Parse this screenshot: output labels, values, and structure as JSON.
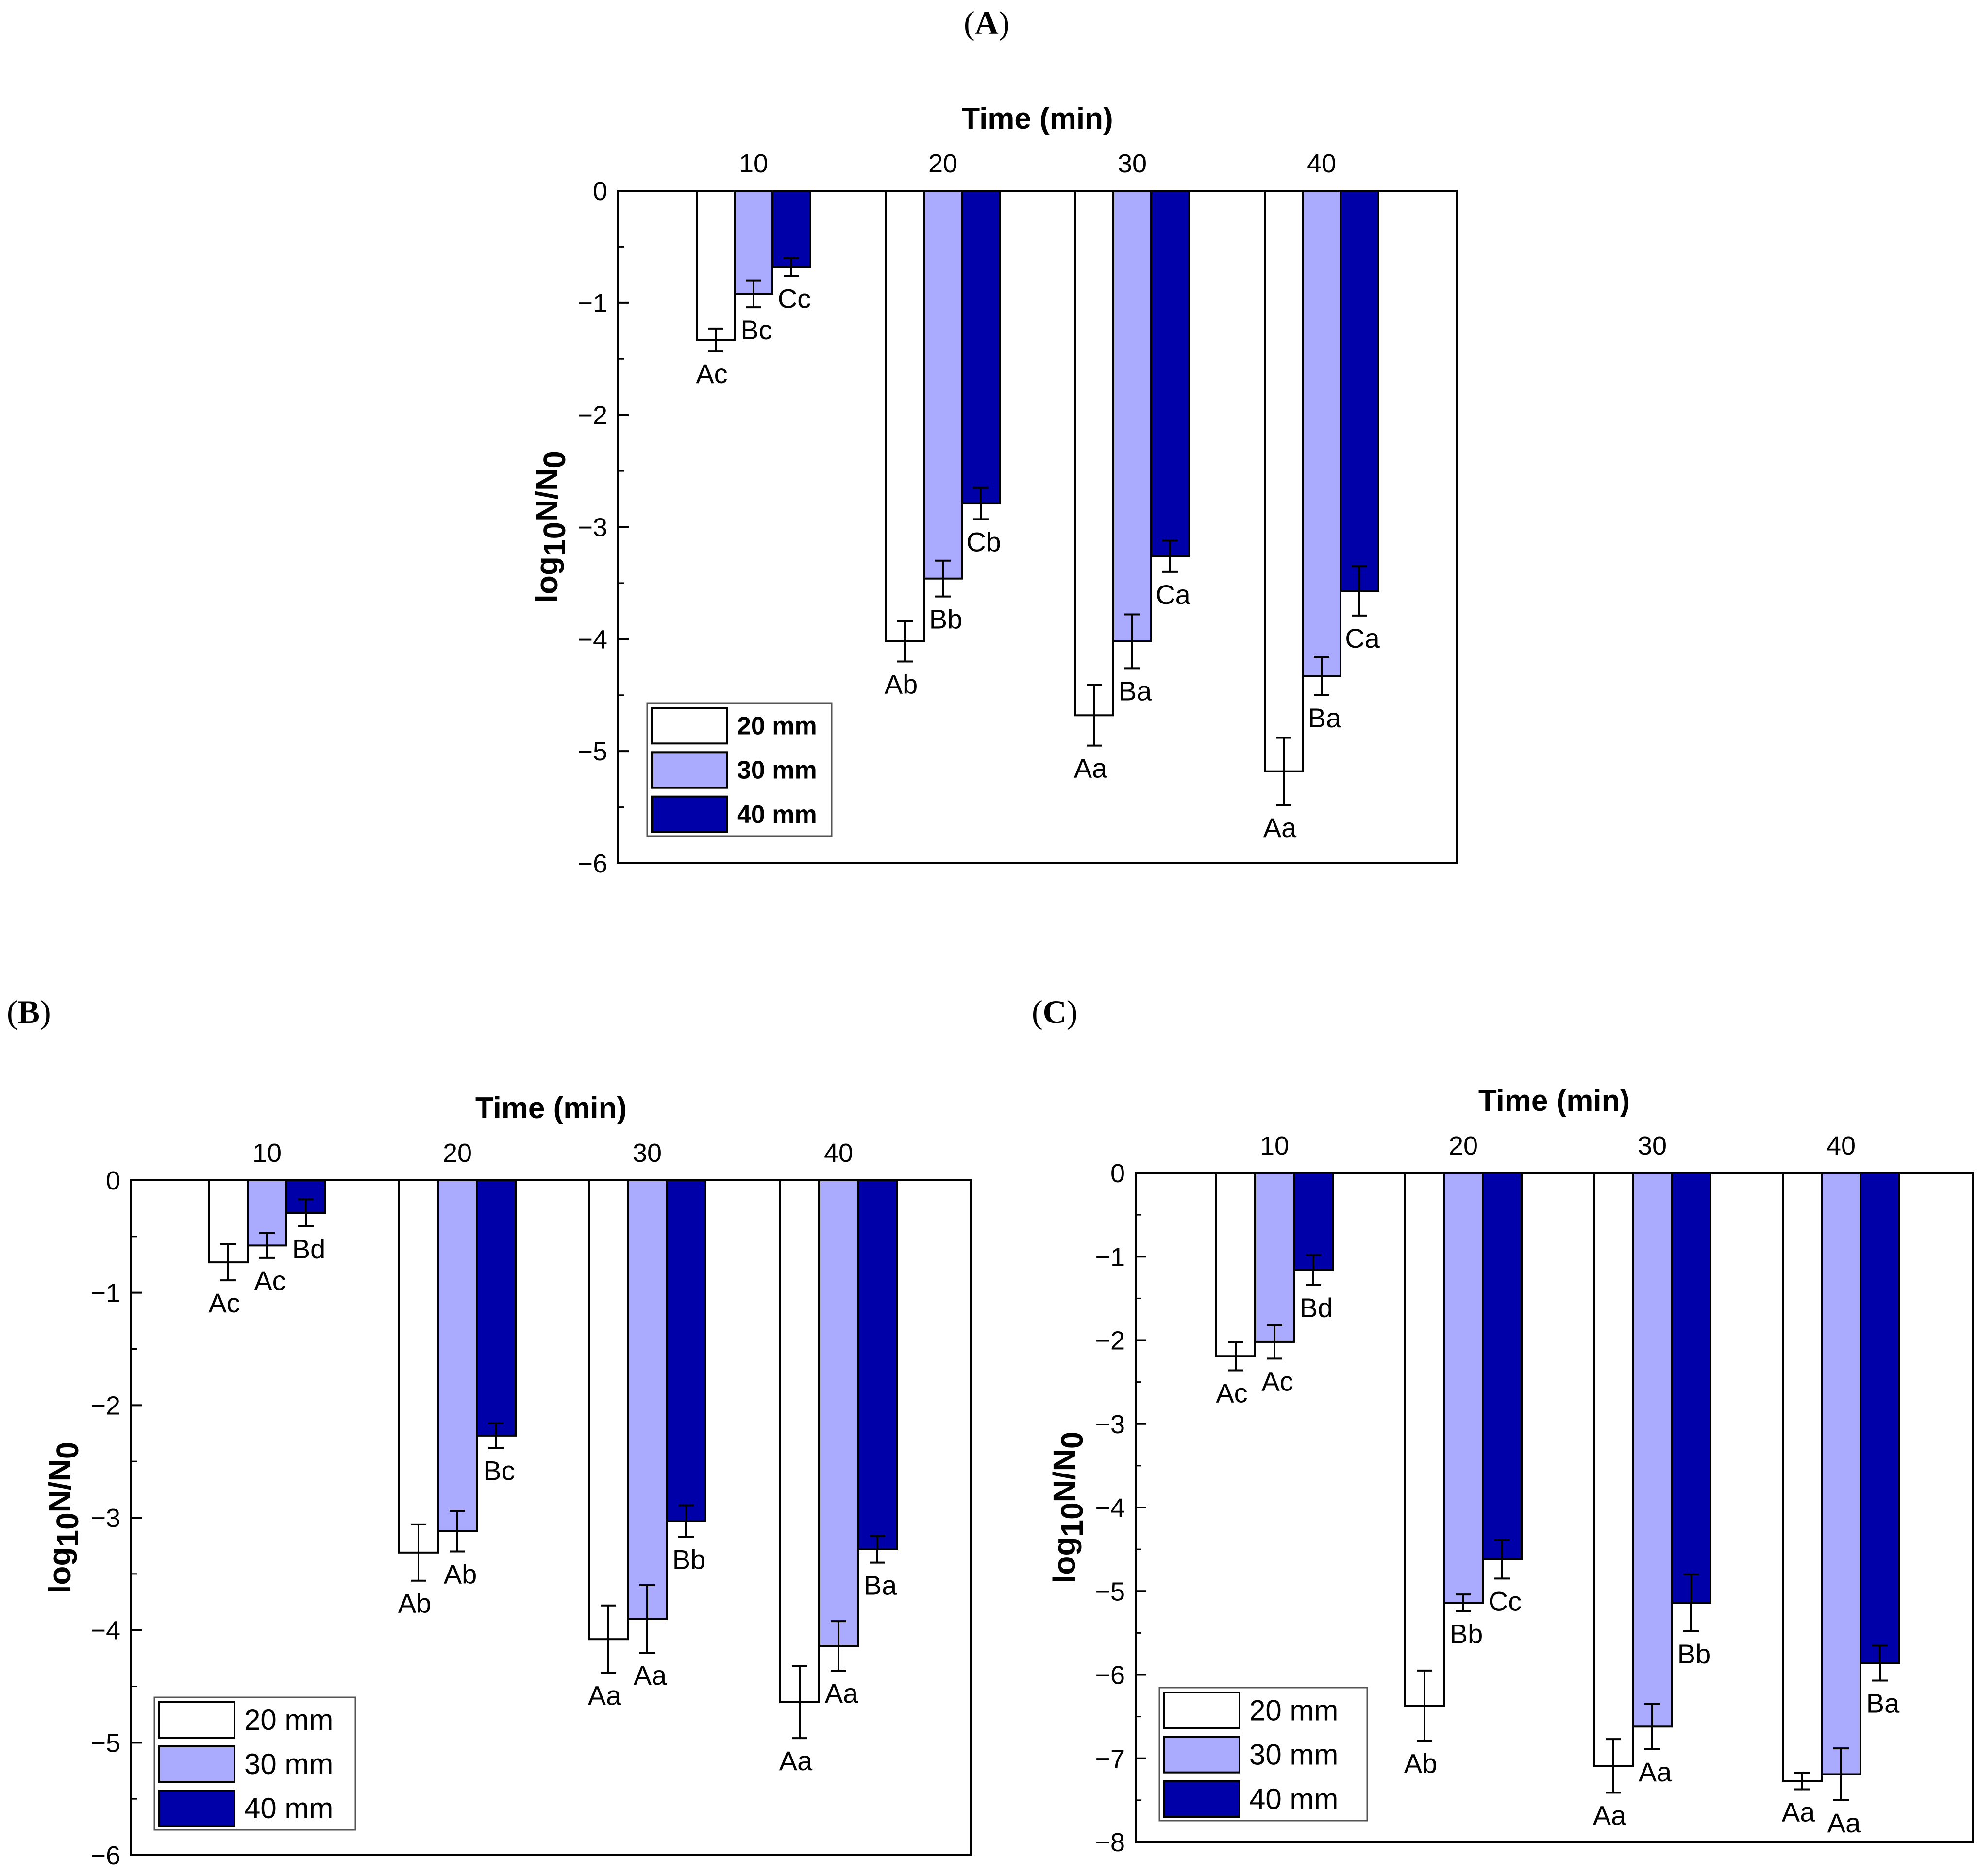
{
  "colors": {
    "series": [
      "#ffffff",
      "#aaaaff",
      "#0000a8"
    ],
    "stroke": "#000000"
  },
  "panels": [
    {
      "label_open": "(",
      "label_letter": "A",
      "label_close": ")"
    },
    {
      "label_open": "(",
      "label_letter": "B",
      "label_close": ")"
    },
    {
      "label_open": "(",
      "label_letter": "C",
      "label_close": ")"
    }
  ],
  "chart_data": [
    {
      "panel": "A",
      "type": "bar",
      "title": "Time (min)",
      "xlabel": "Time (min)",
      "ylabel": "log10N/N0",
      "ylabel_main": "log",
      "ylabel_sub1": "10",
      "ylabel_mid": "N/N",
      "ylabel_sub2": "0",
      "categories": [
        "10",
        "20",
        "30",
        "40"
      ],
      "ylim": [
        -6,
        0
      ],
      "yticks": [
        0,
        -1,
        -2,
        -3,
        -4,
        -5,
        -6
      ],
      "ytick_labels": [
        "0",
        "−1",
        "−2",
        "−3",
        "−4",
        "−5",
        "−6"
      ],
      "legend_position": "bottom-left",
      "legend_bold": true,
      "series": [
        {
          "name": "20 mm",
          "values": [
            -1.33,
            -4.02,
            -4.68,
            -5.18
          ],
          "errors": [
            0.1,
            0.18,
            0.27,
            0.3
          ],
          "labels": [
            "Ac",
            "Ab",
            "Aa",
            "Aa"
          ]
        },
        {
          "name": "30 mm",
          "values": [
            -0.92,
            -3.46,
            -4.02,
            -4.33
          ],
          "errors": [
            0.12,
            0.16,
            0.24,
            0.17
          ],
          "labels": [
            "Bc",
            "Bb",
            "Ba",
            "Ba"
          ]
        },
        {
          "name": "40 mm",
          "values": [
            -0.68,
            -2.79,
            -3.26,
            -3.57
          ],
          "errors": [
            0.08,
            0.14,
            0.14,
            0.22
          ],
          "labels": [
            "Cc",
            "Cb",
            "Ca",
            "Ca"
          ]
        }
      ]
    },
    {
      "panel": "B",
      "type": "bar",
      "title": "Time (min)",
      "xlabel": "Time (min)",
      "ylabel": "log10N/N0",
      "ylabel_main": "log",
      "ylabel_sub1": "10",
      "ylabel_mid": "N/N",
      "ylabel_sub2": "0",
      "categories": [
        "10",
        "20",
        "30",
        "40"
      ],
      "ylim": [
        -6,
        0
      ],
      "yticks": [
        0,
        -1,
        -2,
        -3,
        -4,
        -5,
        -6
      ],
      "ytick_labels": [
        "0",
        "−1",
        "−2",
        "−3",
        "−4",
        "−5",
        "−6"
      ],
      "legend_position": "bottom-left",
      "legend_bold": false,
      "series": [
        {
          "name": "20 mm",
          "values": [
            -0.73,
            -3.31,
            -4.08,
            -4.64
          ],
          "errors": [
            0.16,
            0.25,
            0.3,
            0.32
          ],
          "labels": [
            "Ac",
            "Ab",
            "Aa",
            "Aa"
          ]
        },
        {
          "name": "30 mm",
          "values": [
            -0.58,
            -3.12,
            -3.9,
            -4.14
          ],
          "errors": [
            0.11,
            0.18,
            0.3,
            0.22
          ],
          "labels": [
            "Ac",
            "Ab",
            "Aa",
            "Aa"
          ]
        },
        {
          "name": "40 mm",
          "values": [
            -0.29,
            -2.27,
            -3.03,
            -3.28
          ],
          "errors": [
            0.12,
            0.11,
            0.14,
            0.12
          ],
          "labels": [
            "Bd",
            "Bc",
            "Bb",
            "Ba"
          ]
        }
      ]
    },
    {
      "panel": "C",
      "type": "bar",
      "title": "Time (min)",
      "xlabel": "Time (min)",
      "ylabel": "log10N/N0",
      "ylabel_main": "log",
      "ylabel_sub1": "10",
      "ylabel_mid": "N/N",
      "ylabel_sub2": "0",
      "categories": [
        "10",
        "20",
        "30",
        "40"
      ],
      "ylim": [
        -8,
        0
      ],
      "yticks": [
        0,
        -1,
        -2,
        -3,
        -4,
        -5,
        -6,
        -7,
        -8
      ],
      "ytick_labels": [
        "0",
        "−1",
        "−2",
        "−3",
        "−4",
        "−5",
        "−6",
        "−7",
        "−8"
      ],
      "legend_position": "bottom-left",
      "legend_bold": false,
      "series": [
        {
          "name": "20 mm",
          "values": [
            -2.19,
            -6.37,
            -7.09,
            -7.27
          ],
          "errors": [
            0.17,
            0.42,
            0.32,
            0.1
          ],
          "labels": [
            "Ac",
            "Ab",
            "Aa",
            "Aa"
          ]
        },
        {
          "name": "30 mm",
          "values": [
            -2.02,
            -5.14,
            -6.62,
            -7.19
          ],
          "errors": [
            0.2,
            0.1,
            0.27,
            0.31
          ],
          "labels": [
            "Ac",
            "Bb",
            "Aa",
            "Aa"
          ]
        },
        {
          "name": "40 mm",
          "values": [
            -1.16,
            -4.62,
            -5.14,
            -5.86
          ],
          "errors": [
            0.18,
            0.23,
            0.34,
            0.21
          ],
          "labels": [
            "Bd",
            "Cc",
            "Bb",
            "Ba"
          ]
        }
      ]
    }
  ]
}
